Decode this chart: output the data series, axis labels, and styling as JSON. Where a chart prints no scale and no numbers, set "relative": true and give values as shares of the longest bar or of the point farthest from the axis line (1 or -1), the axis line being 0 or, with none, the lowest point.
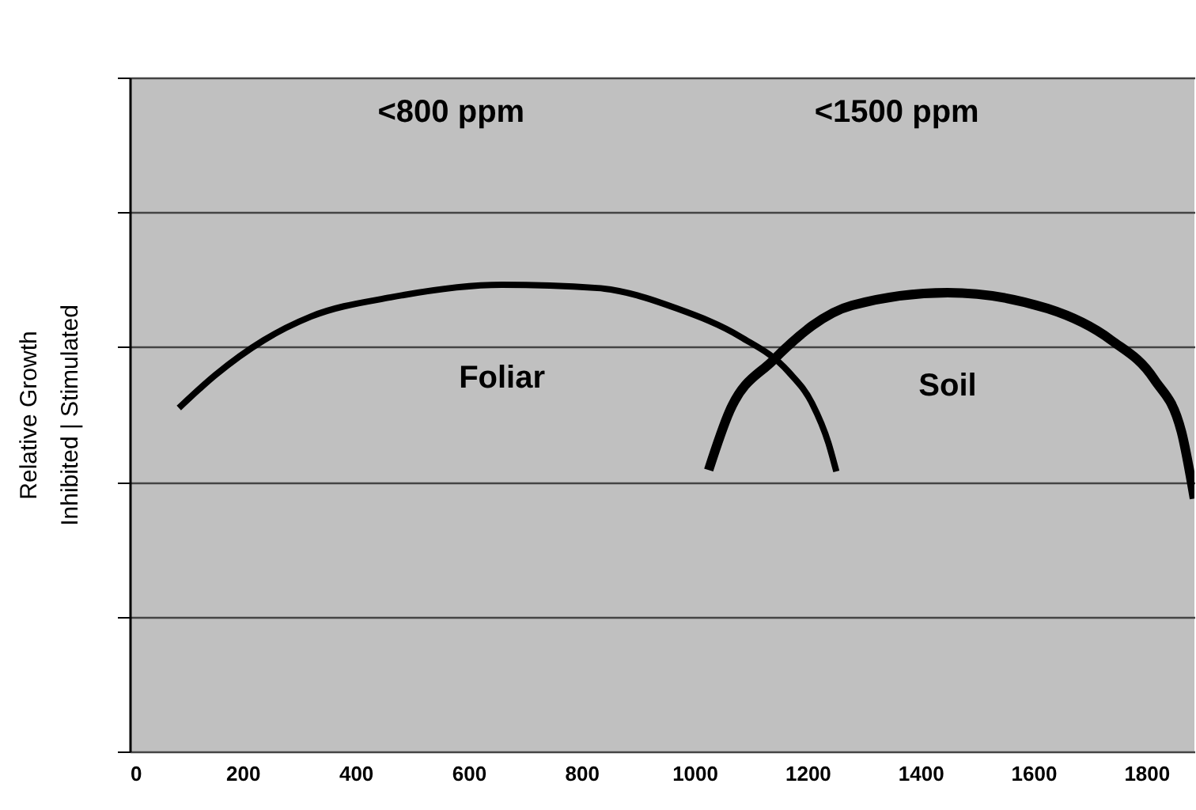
{
  "chart_data": {
    "type": "line",
    "relative": true,
    "ylabel": "Relative Growth\nInhibited  |  Stimulated",
    "xlim": [
      0,
      1885
    ],
    "xticks": [
      0,
      200,
      400,
      600,
      800,
      1000,
      1200,
      1400,
      1600,
      1800
    ],
    "grid": "y",
    "marker": "none",
    "line_style": "solid",
    "annotations": [
      "<800 ppm",
      "<1500 ppm"
    ],
    "series": [
      {
        "name": "Foliar",
        "color": "#000000",
        "x": [
          87,
          152,
          237,
          321,
          462,
          659,
          828,
          969,
          1082,
          1166,
          1208,
          1237,
          1251
        ],
        "values": [
          0.736,
          0.807,
          0.881,
          0.932,
          0.973,
          1.0,
          0.993,
          0.949,
          0.888,
          0.814,
          0.746,
          0.661,
          0.6
        ]
      },
      {
        "name": "Soil",
        "color": "#000000",
        "x": [
          1025,
          1062,
          1138,
          1279,
          1448,
          1625,
          1738,
          1814,
          1862,
          1885
        ],
        "values": [
          0.603,
          0.729,
          0.837,
          0.956,
          0.983,
          0.949,
          0.881,
          0.797,
          0.685,
          0.542
        ]
      }
    ]
  }
}
